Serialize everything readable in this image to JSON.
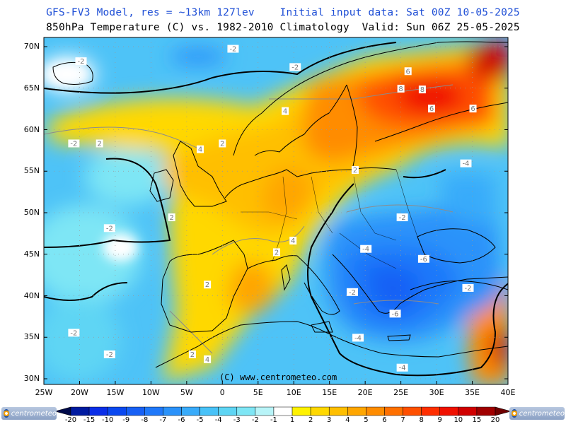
{
  "header": {
    "title_line1": "GFS-FV3 Model, res = ~13km 127lev    Initial input data: Sat 00Z 10-05-2025",
    "title_line2": "850hPa Temperature (C) vs. 1982-2010 Climatology  Valid: Sun 06Z 25-05-2025"
  },
  "map": {
    "lat_labels": [
      "70N",
      "65N",
      "60N",
      "55N",
      "50N",
      "45N",
      "40N",
      "35N",
      "30N"
    ],
    "lon_labels": [
      "25W",
      "20W",
      "15W",
      "10W",
      "5W",
      "0",
      "5E",
      "10E",
      "15E",
      "20E",
      "25E",
      "30E",
      "35E",
      "40E"
    ],
    "copyright": "(C) www.centrometeo.com",
    "contour_labels": [
      {
        "text": "-2",
        "lon": 1.5,
        "lat": 69.7
      },
      {
        "text": "-2",
        "lon": -19.8,
        "lat": 68.2
      },
      {
        "text": "-2",
        "lon": 10.2,
        "lat": 67.5
      },
      {
        "text": "-2",
        "lon": -20.8,
        "lat": 58.3
      },
      {
        "text": "-2",
        "lon": -15.8,
        "lat": 48.1
      },
      {
        "text": "-2",
        "lon": -20.8,
        "lat": 35.5
      },
      {
        "text": "-2",
        "lon": -15.8,
        "lat": 32.9
      },
      {
        "text": "-2",
        "lon": 18.2,
        "lat": 40.4
      },
      {
        "text": "-2",
        "lon": 25.2,
        "lat": 49.4
      },
      {
        "text": "-2",
        "lon": 34.4,
        "lat": 40.9
      },
      {
        "text": "2",
        "lon": -17.2,
        "lat": 58.3
      },
      {
        "text": "2",
        "lon": -7.1,
        "lat": 49.4
      },
      {
        "text": "2",
        "lon": 0.0,
        "lat": 58.3
      },
      {
        "text": "2",
        "lon": 18.6,
        "lat": 55.1
      },
      {
        "text": "2",
        "lon": 7.6,
        "lat": 45.2
      },
      {
        "text": "2",
        "lon": -2.1,
        "lat": 41.3
      },
      {
        "text": "2",
        "lon": -4.2,
        "lat": 32.9
      },
      {
        "text": "4",
        "lon": -3.1,
        "lat": 57.6
      },
      {
        "text": "4",
        "lon": 8.8,
        "lat": 62.2
      },
      {
        "text": "4",
        "lon": 9.9,
        "lat": 46.6
      },
      {
        "text": "4",
        "lon": -2.1,
        "lat": 32.3
      },
      {
        "text": "6",
        "lon": 26.0,
        "lat": 67.0
      },
      {
        "text": "6",
        "lon": 35.1,
        "lat": 62.5
      },
      {
        "text": "8",
        "lon": 25.0,
        "lat": 64.9
      },
      {
        "text": "8",
        "lon": 28.0,
        "lat": 64.8
      },
      {
        "text": "6",
        "lon": 29.3,
        "lat": 62.5
      },
      {
        "text": "-4",
        "lon": 34.1,
        "lat": 55.9
      },
      {
        "text": "-4",
        "lon": 20.1,
        "lat": 45.6
      },
      {
        "text": "-6",
        "lon": 28.2,
        "lat": 44.4
      },
      {
        "text": "-6",
        "lon": 24.2,
        "lat": 37.8
      },
      {
        "text": "-4",
        "lon": 19.0,
        "lat": 34.9
      },
      {
        "text": "-4",
        "lon": 25.2,
        "lat": 31.3
      }
    ]
  },
  "legend": {
    "labels": [
      "-20",
      "-15",
      "-10",
      "-9",
      "-8",
      "-7",
      "-6",
      "-5",
      "-4",
      "-3",
      "-2",
      "-1",
      "1",
      "2",
      "3",
      "4",
      "5",
      "6",
      "7",
      "8",
      "9",
      "10",
      "15",
      "20"
    ],
    "colors": [
      "#000a4a",
      "#001aa0",
      "#0a2ee8",
      "#0a48f0",
      "#1760f5",
      "#1f78fa",
      "#2a92fa",
      "#38abfa",
      "#48c2f8",
      "#5ed5f4",
      "#7ee6f5",
      "#b8f4f8",
      "#ffffff",
      "#fff200",
      "#ffd800",
      "#ffbf00",
      "#ffa600",
      "#ff8c00",
      "#ff7000",
      "#ff5000",
      "#ff2e00",
      "#f01000",
      "#d00000",
      "#a00000",
      "#700000"
    ],
    "logo_text": "centrometeo"
  }
}
